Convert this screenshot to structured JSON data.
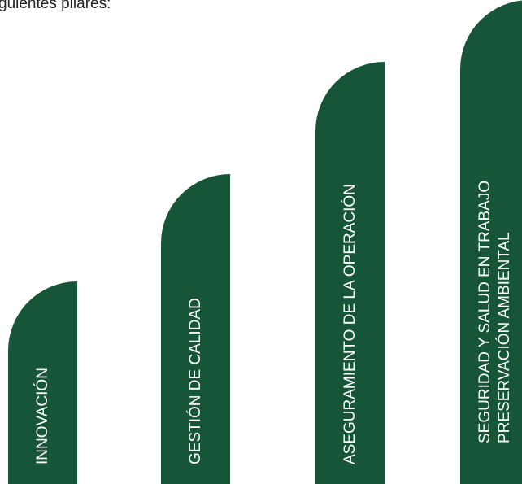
{
  "intro": {
    "text": "guientes pilares:"
  },
  "pillars": [
    {
      "lines": [
        "INNOVACIÓN"
      ]
    },
    {
      "lines": [
        "GESTIÓN DE CALIDAD"
      ]
    },
    {
      "lines": [
        "ASEGURAMIENTO DE LA OPERACIÓN"
      ]
    },
    {
      "lines": [
        "SEGURIDAD Y SALUD EN TRABAJO",
        "PRESERVACIÓN AMBIENTAL"
      ]
    }
  ],
  "colors": {
    "pillar": "#175538",
    "pillar_text": "#ffffff",
    "intro_text": "#222222"
  }
}
